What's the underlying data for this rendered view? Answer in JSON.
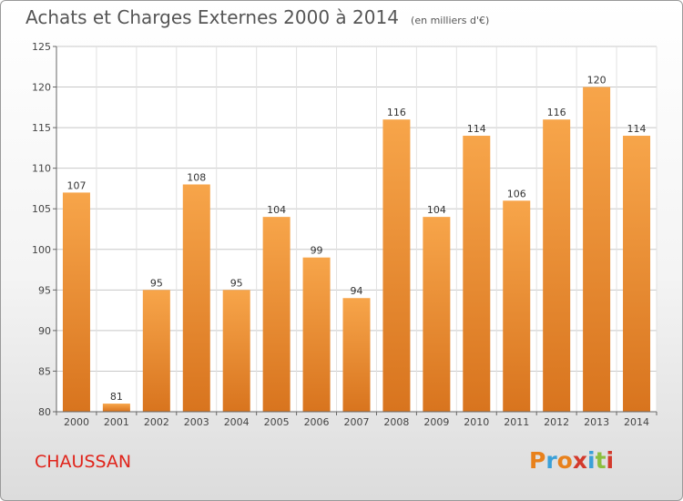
{
  "header": {
    "title": "Achats et Charges Externes 2000 à 2014",
    "unit": "(en milliers d'€)"
  },
  "footer": {
    "commune": "CHAUSSAN",
    "logo_text": "Proxiti"
  },
  "colors": {
    "bar_light": "#f7a54a",
    "bar_dark": "#d8741e",
    "commune_text": "#e0241b",
    "logo_letters": [
      "#e8811c",
      "#3aa0d8",
      "#e8811c",
      "#d33a2c",
      "#3aa0d8",
      "#8cbf3f",
      "#d33a2c"
    ]
  },
  "chart_data": {
    "type": "bar",
    "title": "Achats et Charges Externes 2000 à 2014",
    "subtitle": "(en milliers d'€)",
    "categories": [
      "2000",
      "2001",
      "2002",
      "2003",
      "2004",
      "2005",
      "2006",
      "2007",
      "2008",
      "2009",
      "2010",
      "2011",
      "2012",
      "2013",
      "2014"
    ],
    "values": [
      107,
      81,
      95,
      108,
      95,
      104,
      99,
      94,
      116,
      104,
      114,
      106,
      116,
      120,
      114
    ],
    "ylim": [
      80,
      125
    ],
    "yticks": [
      80,
      85,
      90,
      95,
      100,
      105,
      110,
      115,
      120,
      125
    ],
    "grid": true,
    "legend": "none"
  }
}
